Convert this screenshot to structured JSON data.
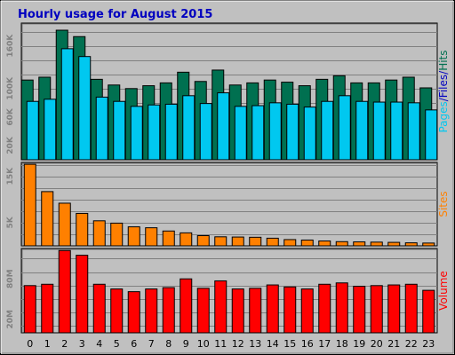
{
  "chart_data": [
    {
      "type": "bar",
      "title": "Hourly usage for August 2015",
      "categories": [
        "0",
        "1",
        "2",
        "3",
        "4",
        "5",
        "6",
        "7",
        "8",
        "9",
        "10",
        "11",
        "12",
        "13",
        "14",
        "15",
        "16",
        "17",
        "18",
        "19",
        "20",
        "21",
        "22",
        "23"
      ],
      "ylabel_parts": [
        "Pages",
        "/",
        "Files",
        "/",
        "Hits"
      ],
      "ytick_labels": [
        "20K",
        "60K",
        "100K",
        "160K"
      ],
      "ylim": [
        0,
        192000
      ],
      "grid": true,
      "series": [
        {
          "name": "Hits",
          "color": "#007050",
          "values": [
            112000,
            116000,
            182000,
            173000,
            113000,
            105000,
            100000,
            104000,
            108000,
            123000,
            110000,
            126000,
            105000,
            108000,
            112000,
            109000,
            104000,
            113000,
            118000,
            108000,
            108000,
            112000,
            116000,
            101000
          ]
        },
        {
          "name": "Files",
          "color": "#00c8f0",
          "values": [
            82000,
            85000,
            156000,
            145000,
            88000,
            82000,
            75000,
            77000,
            78000,
            90000,
            79000,
            94000,
            75000,
            76000,
            80000,
            78000,
            74000,
            82000,
            90000,
            82000,
            81000,
            81000,
            80000,
            70000
          ]
        },
        {
          "name": "Pages",
          "color": "#00c8f0",
          "values": [
            null,
            null,
            null,
            null,
            null,
            null,
            null,
            null,
            null,
            null,
            null,
            null,
            null,
            null,
            null,
            null,
            null,
            null,
            null,
            null,
            null,
            null,
            null,
            null
          ]
        }
      ]
    },
    {
      "type": "bar",
      "categories": [
        "0",
        "1",
        "2",
        "3",
        "4",
        "5",
        "6",
        "7",
        "8",
        "9",
        "10",
        "11",
        "12",
        "13",
        "14",
        "15",
        "16",
        "17",
        "18",
        "19",
        "20",
        "21",
        "22",
        "23"
      ],
      "ylabel": "Sites",
      "ytick_labels": [
        "5K",
        "15K"
      ],
      "ylim": [
        0,
        18000
      ],
      "grid": true,
      "series": [
        {
          "name": "Sites",
          "color": "#ff8000",
          "values": [
            17600,
            11700,
            9200,
            7000,
            5400,
            4900,
            4100,
            3900,
            3200,
            2800,
            2200,
            1950,
            1900,
            1850,
            1650,
            1350,
            1250,
            1050,
            900,
            850,
            800,
            750,
            650,
            600
          ]
        }
      ]
    },
    {
      "type": "bar",
      "categories": [
        "0",
        "1",
        "2",
        "3",
        "4",
        "5",
        "6",
        "7",
        "8",
        "9",
        "10",
        "11",
        "12",
        "13",
        "14",
        "15",
        "16",
        "17",
        "18",
        "19",
        "20",
        "21",
        "22",
        "23"
      ],
      "ylabel": "Volume",
      "ytick_labels": [
        "20M",
        "80M"
      ],
      "ylim": [
        0,
        125000000
      ],
      "grid": true,
      "series": [
        {
          "name": "Volume",
          "color": "#ff0000",
          "values": [
            70000000,
            72000000,
            122000000,
            115000000,
            72000000,
            65000000,
            61000000,
            65000000,
            67000000,
            80000000,
            66000000,
            77000000,
            65000000,
            66000000,
            71000000,
            68000000,
            65000000,
            72000000,
            74000000,
            69000000,
            70000000,
            71000000,
            72000000,
            63000000
          ]
        }
      ]
    }
  ]
}
